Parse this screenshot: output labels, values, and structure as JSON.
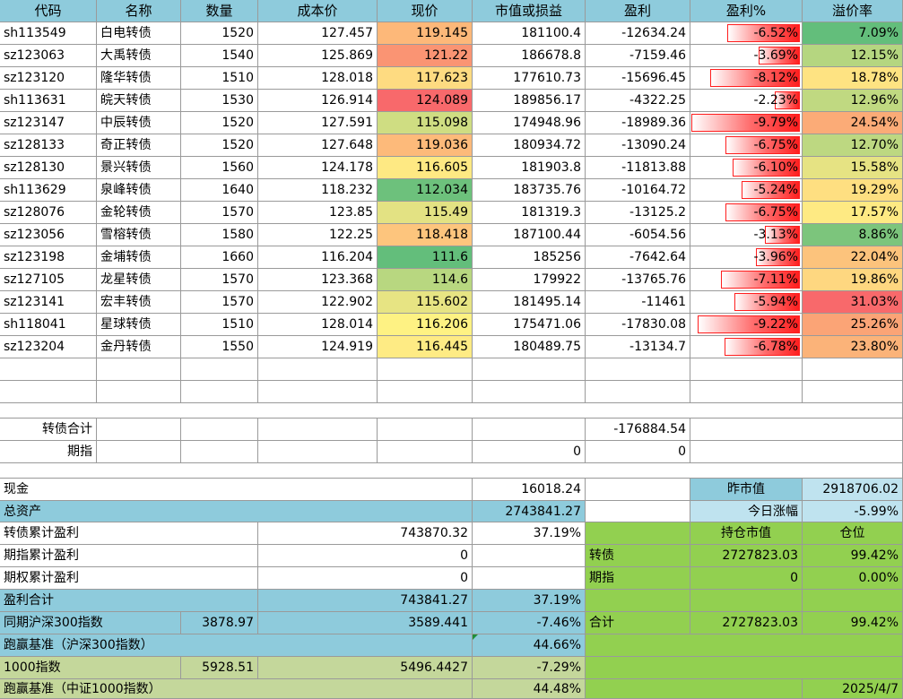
{
  "header": [
    "代码",
    "名称",
    "数量",
    "成本价",
    "现价",
    "市值或损益",
    "盈利",
    "盈利%",
    "溢价率"
  ],
  "rows": [
    {
      "code": "sh113549",
      "name": "白电转债",
      "qty": "1520",
      "cost": "127.457",
      "price": "119.145",
      "mv": "181100.4",
      "pnl": "-12634.24",
      "pct": "-6.52%",
      "pct_v": -6.52,
      "prem": "7.09%",
      "price_color": "#fdb879",
      "prem_color": "#63be7b"
    },
    {
      "code": "sz123063",
      "name": "大禹转债",
      "qty": "1540",
      "cost": "125.869",
      "price": "121.22",
      "mv": "186678.8",
      "pnl": "-7159.46",
      "pct": "-3.69%",
      "pct_v": -3.69,
      "prem": "12.15%",
      "price_color": "#fa9473",
      "prem_color": "#b5d680"
    },
    {
      "code": "sz123120",
      "name": "隆华转债",
      "qty": "1510",
      "cost": "128.018",
      "price": "117.623",
      "mv": "177610.73",
      "pnl": "-15696.45",
      "pct": "-8.12%",
      "pct_v": -8.12,
      "prem": "18.78%",
      "price_color": "#fedb81",
      "prem_color": "#fee382"
    },
    {
      "code": "sh113631",
      "name": "皖天转债",
      "qty": "1530",
      "cost": "126.914",
      "price": "124.089",
      "mv": "189856.17",
      "pnl": "-4322.25",
      "pct": "-2.23%",
      "pct_v": -2.23,
      "prem": "12.96%",
      "price_color": "#f8696b",
      "prem_color": "#c0d981"
    },
    {
      "code": "sz123147",
      "name": "中辰转债",
      "qty": "1520",
      "cost": "127.591",
      "price": "115.098",
      "mv": "174948.96",
      "pnl": "-18989.36",
      "pct": "-9.79%",
      "pct_v": -9.79,
      "prem": "24.54%",
      "price_color": "#cfdd82",
      "prem_color": "#fbab77"
    },
    {
      "code": "sz128133",
      "name": "奇正转债",
      "qty": "1520",
      "cost": "127.648",
      "price": "119.036",
      "mv": "180934.72",
      "pnl": "-13090.24",
      "pct": "-6.75%",
      "pct_v": -6.75,
      "prem": "12.70%",
      "price_color": "#fdba7a",
      "prem_color": "#bdd881"
    },
    {
      "code": "sz128130",
      "name": "景兴转债",
      "qty": "1560",
      "cost": "124.178",
      "price": "116.605",
      "mv": "181903.8",
      "pnl": "-11813.88",
      "pct": "-6.10%",
      "pct_v": -6.1,
      "prem": "15.58%",
      "price_color": "#fee983",
      "prem_color": "#e6e383"
    },
    {
      "code": "sh113629",
      "name": "泉峰转债",
      "qty": "1640",
      "cost": "118.232",
      "price": "112.034",
      "mv": "183735.76",
      "pnl": "-10164.72",
      "pct": "-5.24%",
      "pct_v": -5.24,
      "prem": "19.29%",
      "price_color": "#6dc17c",
      "prem_color": "#fedf81"
    },
    {
      "code": "sz128076",
      "name": "金轮转债",
      "qty": "1570",
      "cost": "123.85",
      "price": "115.49",
      "mv": "181319.3",
      "pnl": "-13125.2",
      "pct": "-6.75%",
      "pct_v": -6.75,
      "prem": "17.57%",
      "price_color": "#e3e283",
      "prem_color": "#feea83"
    },
    {
      "code": "sz123056",
      "name": "雪榕转债",
      "qty": "1580",
      "cost": "122.25",
      "price": "118.418",
      "mv": "187100.44",
      "pnl": "-6054.56",
      "pct": "-3.13%",
      "pct_v": -3.13,
      "prem": "8.86%",
      "price_color": "#fdc57d",
      "prem_color": "#7cc57c"
    },
    {
      "code": "sz123198",
      "name": "金埔转债",
      "qty": "1660",
      "cost": "116.204",
      "price": "111.6",
      "mv": "185256",
      "pnl": "-7642.64",
      "pct": "-3.96%",
      "pct_v": -3.96,
      "prem": "22.04%",
      "price_color": "#63be7b",
      "prem_color": "#fcc37c"
    },
    {
      "code": "sz127105",
      "name": "龙星转债",
      "qty": "1570",
      "cost": "123.368",
      "price": "114.6",
      "mv": "179922",
      "pnl": "-13765.76",
      "pct": "-7.11%",
      "pct_v": -7.11,
      "prem": "19.86%",
      "price_color": "#b8d780",
      "prem_color": "#fed780"
    },
    {
      "code": "sz123141",
      "name": "宏丰转债",
      "qty": "1570",
      "cost": "122.902",
      "price": "115.602",
      "mv": "181495.14",
      "pnl": "-11461",
      "pct": "-5.94%",
      "pct_v": -5.94,
      "prem": "31.03%",
      "price_color": "#e7e483",
      "prem_color": "#f8696b"
    },
    {
      "code": "sh118041",
      "name": "星球转债",
      "qty": "1510",
      "cost": "128.014",
      "price": "116.206",
      "mv": "175471.06",
      "pnl": "-17830.08",
      "pct": "-9.22%",
      "pct_v": -9.22,
      "prem": "25.26%",
      "price_color": "#fef283",
      "prem_color": "#fba476"
    },
    {
      "code": "sz123204",
      "name": "金丹转债",
      "qty": "1550",
      "cost": "124.919",
      "price": "116.445",
      "mv": "180489.75",
      "pnl": "-13134.7",
      "pct": "-6.78%",
      "pct_v": -6.78,
      "prem": "23.80%",
      "price_color": "#feeb84",
      "prem_color": "#fbb379"
    }
  ],
  "subtotal": {
    "bond_label": "转债合计",
    "bond_pnl": "-176884.54",
    "fut_label": "期指",
    "fut_mv": "0",
    "fut_pnl": "0"
  },
  "summary": {
    "cash_label": "现金",
    "cash_value": "16018.24",
    "total_label": "总资产",
    "total_value": "2743841.27",
    "bond_cum_label": "转债累计盈利",
    "bond_cum_value": "743870.32",
    "bond_cum_pct": "37.19%",
    "fut_cum_label": "期指累计盈利",
    "fut_cum_value": "0",
    "opt_cum_label": "期权累计盈利",
    "opt_cum_value": "0",
    "profit_label": "盈利合计",
    "profit_value": "743841.27",
    "profit_pct": "37.19%",
    "hs300_label": "同期沪深300指数",
    "hs300_base": "3878.97",
    "hs300_now": "3589.441",
    "hs300_pct": "-7.46%",
    "beat300_label": "跑赢基准（沪深300指数）",
    "beat300_value": "44.66%",
    "idx1000_label": "1000指数",
    "idx1000_base": "5928.51",
    "idx1000_now": "5496.4427",
    "idx1000_pct": "-7.29%",
    "beat1000_label": "跑赢基准（中证1000指数）",
    "beat1000_value": "44.48%"
  },
  "right_panel": {
    "prev_label": "昨市值",
    "prev_value": "2918706.02",
    "today_label": "今日涨幅",
    "today_value": "-5.99%",
    "hold_header": "持仓市值",
    "pos_header": "仓位",
    "bond_label": "转债",
    "bond_value": "2727823.03",
    "bond_pos": "99.42%",
    "fut_label": "期指",
    "fut_value": "0",
    "fut_pos": "0.00%",
    "total_label": "合计",
    "total_value": "2727823.03",
    "total_pos": "99.42%",
    "date": "2025/4/7"
  },
  "colors": {
    "header_blue": "#8ecbdc",
    "light_blue": "#bfe3ef",
    "green": "#92d050",
    "olive": "#c4d79b",
    "databar_red": "#ff1e1e"
  }
}
